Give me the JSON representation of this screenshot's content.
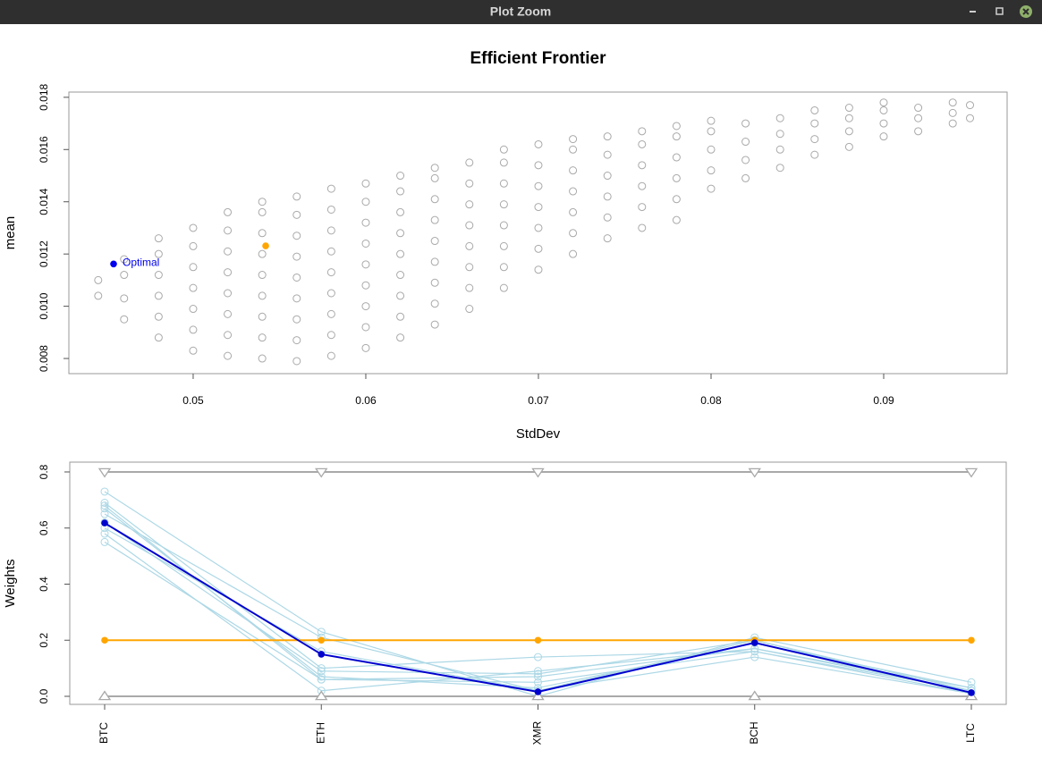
{
  "window": {
    "title": "Plot Zoom"
  },
  "chart_data": [
    {
      "type": "scatter",
      "title": "Efficient Frontier",
      "x_label": "StdDev",
      "y_label": "mean",
      "xlim": [
        0.0428,
        0.09715
      ],
      "ylim": [
        0.00742,
        0.0182
      ],
      "xticks": [
        0.05,
        0.06,
        0.07,
        0.08,
        0.09
      ],
      "yticks": [
        0.008,
        {
          "value": 0.01,
          "label": "0.010"
        },
        0.012,
        0.014,
        0.016,
        0.018
      ],
      "series": [
        {
          "color": "#a9a9a9",
          "marker": "open-circle",
          "x": [
            0.0445,
            0.0445,
            0.046,
            0.046,
            0.046,
            0.046,
            0.048,
            0.048,
            0.048,
            0.048,
            0.048,
            0.048,
            0.05,
            0.05,
            0.05,
            0.05,
            0.05,
            0.05,
            0.05,
            0.052,
            0.052,
            0.052,
            0.052,
            0.052,
            0.052,
            0.052,
            0.052,
            0.054,
            0.054,
            0.054,
            0.054,
            0.054,
            0.054,
            0.054,
            0.054,
            0.054,
            0.056,
            0.056,
            0.056,
            0.056,
            0.056,
            0.056,
            0.056,
            0.056,
            0.056,
            0.058,
            0.058,
            0.058,
            0.058,
            0.058,
            0.058,
            0.058,
            0.058,
            0.058,
            0.06,
            0.06,
            0.06,
            0.06,
            0.06,
            0.06,
            0.06,
            0.06,
            0.06,
            0.062,
            0.062,
            0.062,
            0.062,
            0.062,
            0.062,
            0.062,
            0.062,
            0.062,
            0.064,
            0.064,
            0.064,
            0.064,
            0.064,
            0.064,
            0.064,
            0.064,
            0.064,
            0.066,
            0.066,
            0.066,
            0.066,
            0.066,
            0.066,
            0.066,
            0.066,
            0.068,
            0.068,
            0.068,
            0.068,
            0.068,
            0.068,
            0.068,
            0.068,
            0.07,
            0.07,
            0.07,
            0.07,
            0.07,
            0.07,
            0.07,
            0.072,
            0.072,
            0.072,
            0.072,
            0.072,
            0.072,
            0.072,
            0.074,
            0.074,
            0.074,
            0.074,
            0.074,
            0.074,
            0.076,
            0.076,
            0.076,
            0.076,
            0.076,
            0.076,
            0.078,
            0.078,
            0.078,
            0.078,
            0.078,
            0.078,
            0.08,
            0.08,
            0.08,
            0.08,
            0.08,
            0.082,
            0.082,
            0.082,
            0.082,
            0.084,
            0.084,
            0.084,
            0.084,
            0.086,
            0.086,
            0.086,
            0.086,
            0.088,
            0.088,
            0.088,
            0.088,
            0.09,
            0.09,
            0.09,
            0.09,
            0.092,
            0.092,
            0.092,
            0.094,
            0.094,
            0.094,
            0.095,
            0.095
          ],
          "y": [
            0.0104,
            0.011,
            0.0095,
            0.0103,
            0.0112,
            0.0118,
            0.0088,
            0.0096,
            0.0104,
            0.0112,
            0.012,
            0.0126,
            0.0083,
            0.0091,
            0.0099,
            0.0107,
            0.0115,
            0.0123,
            0.013,
            0.0081,
            0.0089,
            0.0097,
            0.0105,
            0.0113,
            0.0121,
            0.0129,
            0.0136,
            0.008,
            0.0088,
            0.0096,
            0.0104,
            0.0112,
            0.012,
            0.0128,
            0.0136,
            0.014,
            0.0079,
            0.0087,
            0.0095,
            0.0103,
            0.0111,
            0.0119,
            0.0127,
            0.0135,
            0.0142,
            0.0081,
            0.0089,
            0.0097,
            0.0105,
            0.0113,
            0.0121,
            0.0129,
            0.0137,
            0.0145,
            0.0084,
            0.0092,
            0.01,
            0.0108,
            0.0116,
            0.0124,
            0.0132,
            0.014,
            0.0147,
            0.0088,
            0.0096,
            0.0104,
            0.0112,
            0.012,
            0.0128,
            0.0136,
            0.0144,
            0.015,
            0.0093,
            0.0101,
            0.0109,
            0.0117,
            0.0125,
            0.0133,
            0.0141,
            0.0149,
            0.0153,
            0.0099,
            0.0107,
            0.0115,
            0.0123,
            0.0131,
            0.0139,
            0.0147,
            0.0155,
            0.0107,
            0.0115,
            0.0123,
            0.0131,
            0.0139,
            0.0147,
            0.0155,
            0.016,
            0.0114,
            0.0122,
            0.013,
            0.0138,
            0.0146,
            0.0154,
            0.0162,
            0.012,
            0.0128,
            0.0136,
            0.0144,
            0.0152,
            0.016,
            0.0164,
            0.0126,
            0.0134,
            0.0142,
            0.015,
            0.0158,
            0.0165,
            0.013,
            0.0138,
            0.0146,
            0.0154,
            0.0162,
            0.0167,
            0.0133,
            0.0141,
            0.0149,
            0.0157,
            0.0165,
            0.0169,
            0.0145,
            0.0152,
            0.016,
            0.0167,
            0.0171,
            0.0149,
            0.0156,
            0.0163,
            0.017,
            0.0153,
            0.016,
            0.0166,
            0.0172,
            0.0158,
            0.0164,
            0.017,
            0.0175,
            0.0161,
            0.0167,
            0.0172,
            0.0176,
            0.0165,
            0.017,
            0.0175,
            0.0178,
            0.0167,
            0.0172,
            0.0176,
            0.017,
            0.0174,
            0.0178,
            0.0172,
            0.0177
          ]
        },
        {
          "color": "#0000ee",
          "marker": "dot",
          "x": [
            0.04539
          ],
          "y": [
            0.01162
          ],
          "label": "Optimal"
        },
        {
          "color": "#ffa500",
          "marker": "dot",
          "x": [
            0.0542
          ],
          "y": [
            0.01231
          ]
        }
      ]
    },
    {
      "type": "line",
      "y_label": "Weights",
      "categories": [
        "BTC",
        "ETH",
        "XMR",
        "BCH",
        "LTC"
      ],
      "ylim": [
        -0.0287,
        0.835
      ],
      "yticks": [
        {
          "value": 0,
          "label": "0.0"
        },
        0.2,
        0.4,
        0.6,
        0.8
      ],
      "series": [
        {
          "color": "#add8e6",
          "marker": "open-circle",
          "values": [
            0.73,
            0.23,
            0.0,
            0.21,
            0.05
          ]
        },
        {
          "color": "#add8e6",
          "marker": "open-circle",
          "values": [
            0.69,
            0.1,
            0.14,
            0.16,
            0.01
          ]
        },
        {
          "color": "#add8e6",
          "marker": "open-circle",
          "values": [
            0.68,
            0.06,
            0.07,
            0.17,
            0.02
          ]
        },
        {
          "color": "#add8e6",
          "marker": "open-circle",
          "values": [
            0.67,
            0.07,
            0.03,
            0.19,
            0.03
          ]
        },
        {
          "color": "#add8e6",
          "marker": "open-circle",
          "values": [
            0.65,
            0.21,
            0.02,
            0.14,
            0.01
          ]
        },
        {
          "color": "#add8e6",
          "marker": "open-circle",
          "values": [
            0.62,
            0.09,
            0.08,
            0.2,
            0.01
          ]
        },
        {
          "color": "#add8e6",
          "marker": "open-circle",
          "values": [
            0.6,
            0.16,
            0.02,
            0.2,
            0.02
          ]
        },
        {
          "color": "#add8e6",
          "marker": "open-circle",
          "values": [
            0.58,
            0.02,
            0.09,
            0.17,
            0.03
          ]
        },
        {
          "color": "#add8e6",
          "marker": "open-circle",
          "values": [
            0.55,
            0.06,
            0.05,
            0.16,
            0.02
          ]
        },
        {
          "color": "#a9a9a9",
          "marker": "triangle-down",
          "values": [
            0.8,
            0.8,
            0.8,
            0.8,
            0.8
          ]
        },
        {
          "color": "#a9a9a9",
          "marker": "triangle-up",
          "values": [
            0,
            0,
            0,
            0,
            0
          ]
        },
        {
          "color": "#ffa500",
          "marker": "dot",
          "values": [
            0.2,
            0.2,
            0.2,
            0.2,
            0.2
          ]
        },
        {
          "color": "#0000cd",
          "marker": "dot",
          "values": [
            0.618,
            0.15,
            0.016,
            0.191,
            0.013
          ]
        }
      ]
    }
  ]
}
